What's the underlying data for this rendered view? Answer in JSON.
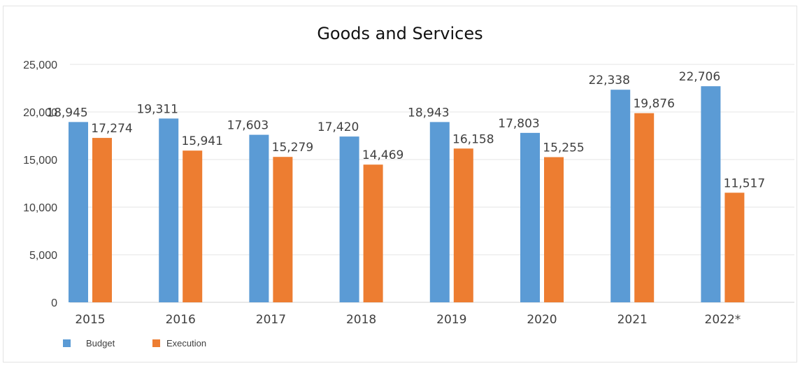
{
  "chart_data": {
    "type": "bar",
    "title": "Goods and Services",
    "categories": [
      "2015",
      "2016",
      "2017",
      "2018",
      "2019",
      "2020",
      "2021",
      "2022*"
    ],
    "series": [
      {
        "name": "Budget",
        "color": "#5b9bd5",
        "values": [
          18945,
          19311,
          17603,
          17420,
          18943,
          17803,
          22338,
          22706
        ],
        "labels": [
          "18,945",
          "19,311",
          "17,603",
          "17,420",
          "18,943",
          "17,803",
          "22,338",
          "22,706"
        ]
      },
      {
        "name": "Execution",
        "color": "#ed7d31",
        "values": [
          17274,
          15941,
          15279,
          14469,
          16158,
          15255,
          19876,
          11517
        ],
        "labels": [
          "17,274",
          "15,941",
          "15,279",
          "14,469",
          "16,158",
          "15,255",
          "19,876",
          "11,517"
        ]
      }
    ],
    "xlabel": "",
    "ylabel": "",
    "ylim": [
      0,
      25000
    ],
    "yticks": [
      0,
      5000,
      10000,
      15000,
      20000,
      25000
    ],
    "ytick_labels": [
      "0",
      "5,000",
      "10,000",
      "15,000",
      "20,000",
      "25,000"
    ],
    "grid": true,
    "legend_position": "bottom-left"
  }
}
